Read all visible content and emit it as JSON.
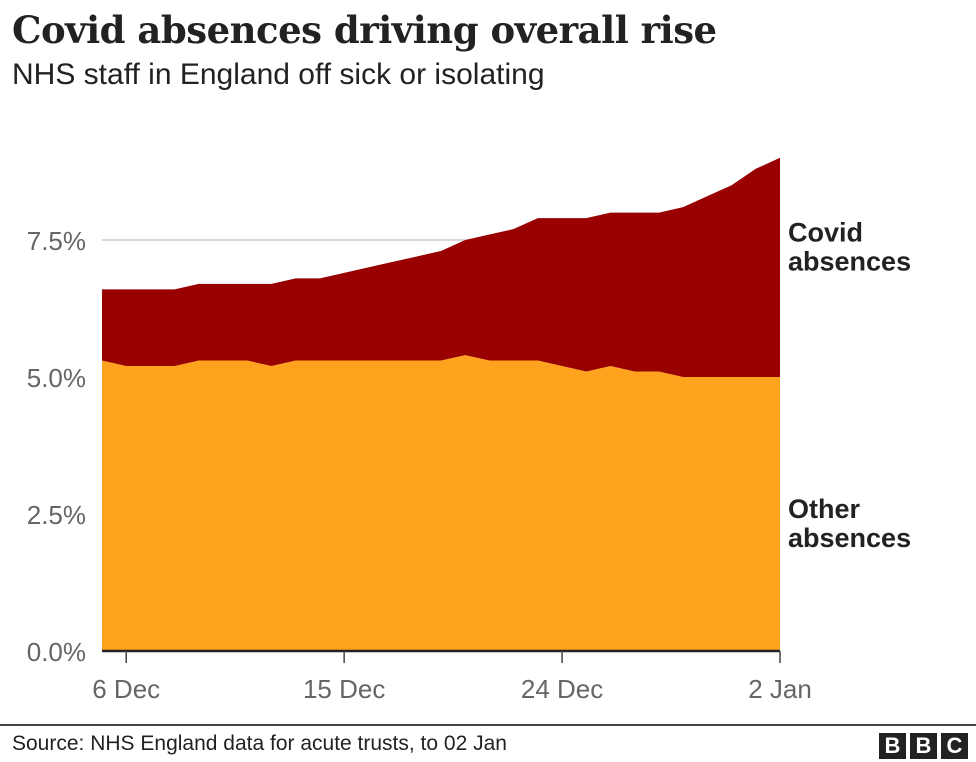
{
  "header": {
    "title": "Covid absences driving overall rise",
    "subtitle": "NHS staff in England off sick or isolating"
  },
  "footer": {
    "source": "Source: NHS England data for acute trusts, to 02 Jan",
    "logo": [
      "B",
      "B",
      "C"
    ]
  },
  "chart_data": {
    "type": "area",
    "stacked": true,
    "title": "Covid absences driving overall rise",
    "subtitle": "NHS staff in England off sick or isolating",
    "x": [
      "5 Dec",
      "6 Dec",
      "7 Dec",
      "8 Dec",
      "9 Dec",
      "10 Dec",
      "11 Dec",
      "12 Dec",
      "13 Dec",
      "14 Dec",
      "15 Dec",
      "16 Dec",
      "17 Dec",
      "18 Dec",
      "19 Dec",
      "20 Dec",
      "21 Dec",
      "22 Dec",
      "23 Dec",
      "24 Dec",
      "25 Dec",
      "26 Dec",
      "27 Dec",
      "28 Dec",
      "29 Dec",
      "30 Dec",
      "31 Dec",
      "1 Jan",
      "2 Jan"
    ],
    "x_ticks": [
      "6 Dec",
      "15 Dec",
      "24 Dec",
      "2 Jan"
    ],
    "y_ticks": [
      0,
      2.5,
      5,
      7.5
    ],
    "y_tick_labels": [
      "0.0%",
      "2.5%",
      "5.0%",
      "7.5%"
    ],
    "ylim": [
      0,
      9.5
    ],
    "unit": "%",
    "grid": "horizontal",
    "legend": "right (direct labels)",
    "series": [
      {
        "name": "Other absences",
        "label_lines": [
          "Other",
          "absences"
        ],
        "color": "#FFA31F",
        "values": [
          5.3,
          5.2,
          5.2,
          5.2,
          5.3,
          5.3,
          5.3,
          5.2,
          5.3,
          5.3,
          5.3,
          5.3,
          5.3,
          5.3,
          5.3,
          5.4,
          5.3,
          5.3,
          5.3,
          5.2,
          5.1,
          5.2,
          5.1,
          5.1,
          5.0,
          5.0,
          5.0,
          5.0,
          5.0
        ]
      },
      {
        "name": "Covid absences",
        "label_lines": [
          "Covid",
          "absences"
        ],
        "color": "#990000",
        "values": [
          1.3,
          1.4,
          1.4,
          1.4,
          1.4,
          1.4,
          1.4,
          1.5,
          1.5,
          1.5,
          1.6,
          1.7,
          1.8,
          1.9,
          2.0,
          2.1,
          2.3,
          2.4,
          2.6,
          2.7,
          2.8,
          2.8,
          2.9,
          2.9,
          3.1,
          3.3,
          3.5,
          3.8,
          4.0
        ]
      }
    ]
  }
}
